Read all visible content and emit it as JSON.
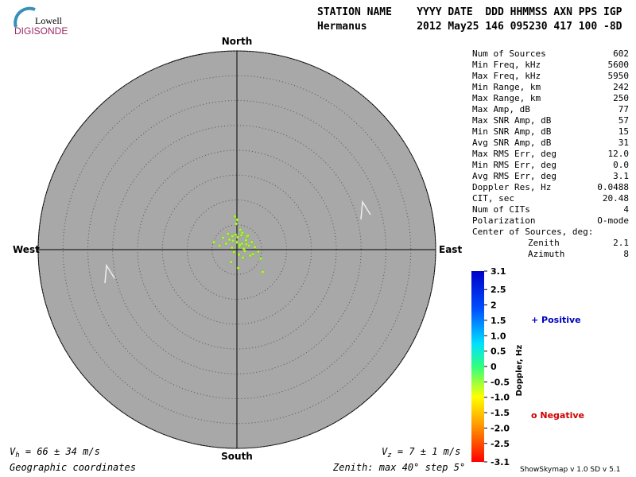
{
  "logo": {
    "top": "Lowell",
    "bottom": "DIGISONDE"
  },
  "header": {
    "labels": "STATION NAME    YYYY DATE  DDD HHMMSS AXN PPS IGP",
    "values": "Hermanus        2012 May25 146 095230 417 100 -8D"
  },
  "stats": {
    "rows": [
      [
        "Num of Sources",
        "602"
      ],
      [
        "Min Freq, kHz",
        "5600"
      ],
      [
        "Max Freq, kHz",
        "5950"
      ],
      [
        "Min Range, km",
        "242"
      ],
      [
        "Max Range, km",
        "250"
      ],
      [
        "Max Amp, dB",
        "77"
      ],
      [
        "Max SNR Amp, dB",
        "57"
      ],
      [
        "Min SNR Amp, dB",
        "15"
      ],
      [
        "Avg SNR Amp, dB",
        "31"
      ],
      [
        "Max RMS Err, deg",
        "12.0"
      ],
      [
        "Min RMS Err, deg",
        "0.0"
      ],
      [
        "Avg RMS Err, deg",
        "3.1"
      ],
      [
        "Doppler Res, Hz",
        "0.0488"
      ],
      [
        "CIT, sec",
        "20.48"
      ],
      [
        "Num of CITs",
        "4"
      ],
      [
        "Polarization",
        "O-mode"
      ]
    ],
    "center": {
      "title": "Center of Sources, deg:",
      "rows": [
        [
          "Zenith",
          "2.1"
        ],
        [
          "Azimuth",
          "8"
        ]
      ]
    }
  },
  "chart_data": {
    "type": "scatter",
    "directions": {
      "north": "North",
      "south": "South",
      "east": "East",
      "west": "West"
    },
    "rlim": 40,
    "rticks": [
      5,
      10,
      15,
      20,
      25,
      30,
      35,
      40
    ],
    "xlim": [
      -40,
      40
    ],
    "ylim": [
      -40,
      40
    ],
    "color": "#b4f050",
    "x": [
      -0.8,
      0.2,
      1.0,
      -1.5,
      0.5,
      1.8,
      -0.3,
      2.4,
      -2.2,
      0.9,
      1.4,
      -1.0,
      0.0,
      2.0,
      -0.6,
      1.1,
      3.0,
      -2.8,
      0.4,
      1.6,
      -1.8,
      2.7,
      0.7,
      -0.2,
      1.2,
      3.6,
      -3.5,
      4.3,
      5.2,
      0.1,
      -1.2,
      2.2,
      0.6,
      -0.9,
      1.9,
      4.8,
      -4.6,
      3.2,
      0.3,
      -0.4
    ],
    "y": [
      1.8,
      2.5,
      1.2,
      2.0,
      0.6,
      1.9,
      3.0,
      0.8,
      1.2,
      2.9,
      0.2,
      0.4,
      1.5,
      2.6,
      -0.5,
      3.4,
      1.5,
      2.4,
      -1.0,
      -0.3,
      3.2,
      -1.2,
      4.0,
      5.2,
      -1.6,
      0.5,
      0.8,
      -0.4,
      -4.5,
      6.0,
      -2.5,
      2.8,
      1.0,
      2.7,
      1.1,
      -1.8,
      1.5,
      -0.9,
      -3.7,
      6.7
    ],
    "colorbar": {
      "title": "Doppler, Hz",
      "lim": [
        -3.1,
        3.1
      ],
      "ticks": [
        3.1,
        2.5,
        2,
        1.5,
        {
          "value": 1,
          "label": "1.0"
        },
        0.5,
        0,
        -0.5,
        {
          "value": -1,
          "label": "-1.0"
        },
        -1.5,
        {
          "value": -2,
          "label": "-2.0"
        },
        -2.5,
        -3.1
      ]
    },
    "legend": {
      "positive": "+ Positive",
      "negative": "o Negative"
    },
    "vh": {
      "symbol": "V",
      "sub": "h",
      "text": " = 66 ± 34 m/s"
    },
    "vz": {
      "symbol": "V",
      "sub": "z",
      "text": " = 7 ± 1 m/s"
    },
    "coordinates": "Geographic coordinates",
    "zenith_note": "Zenith: max 40°  step 5°",
    "version": "ShowSkymap v 1.0  SD v 5.1"
  }
}
